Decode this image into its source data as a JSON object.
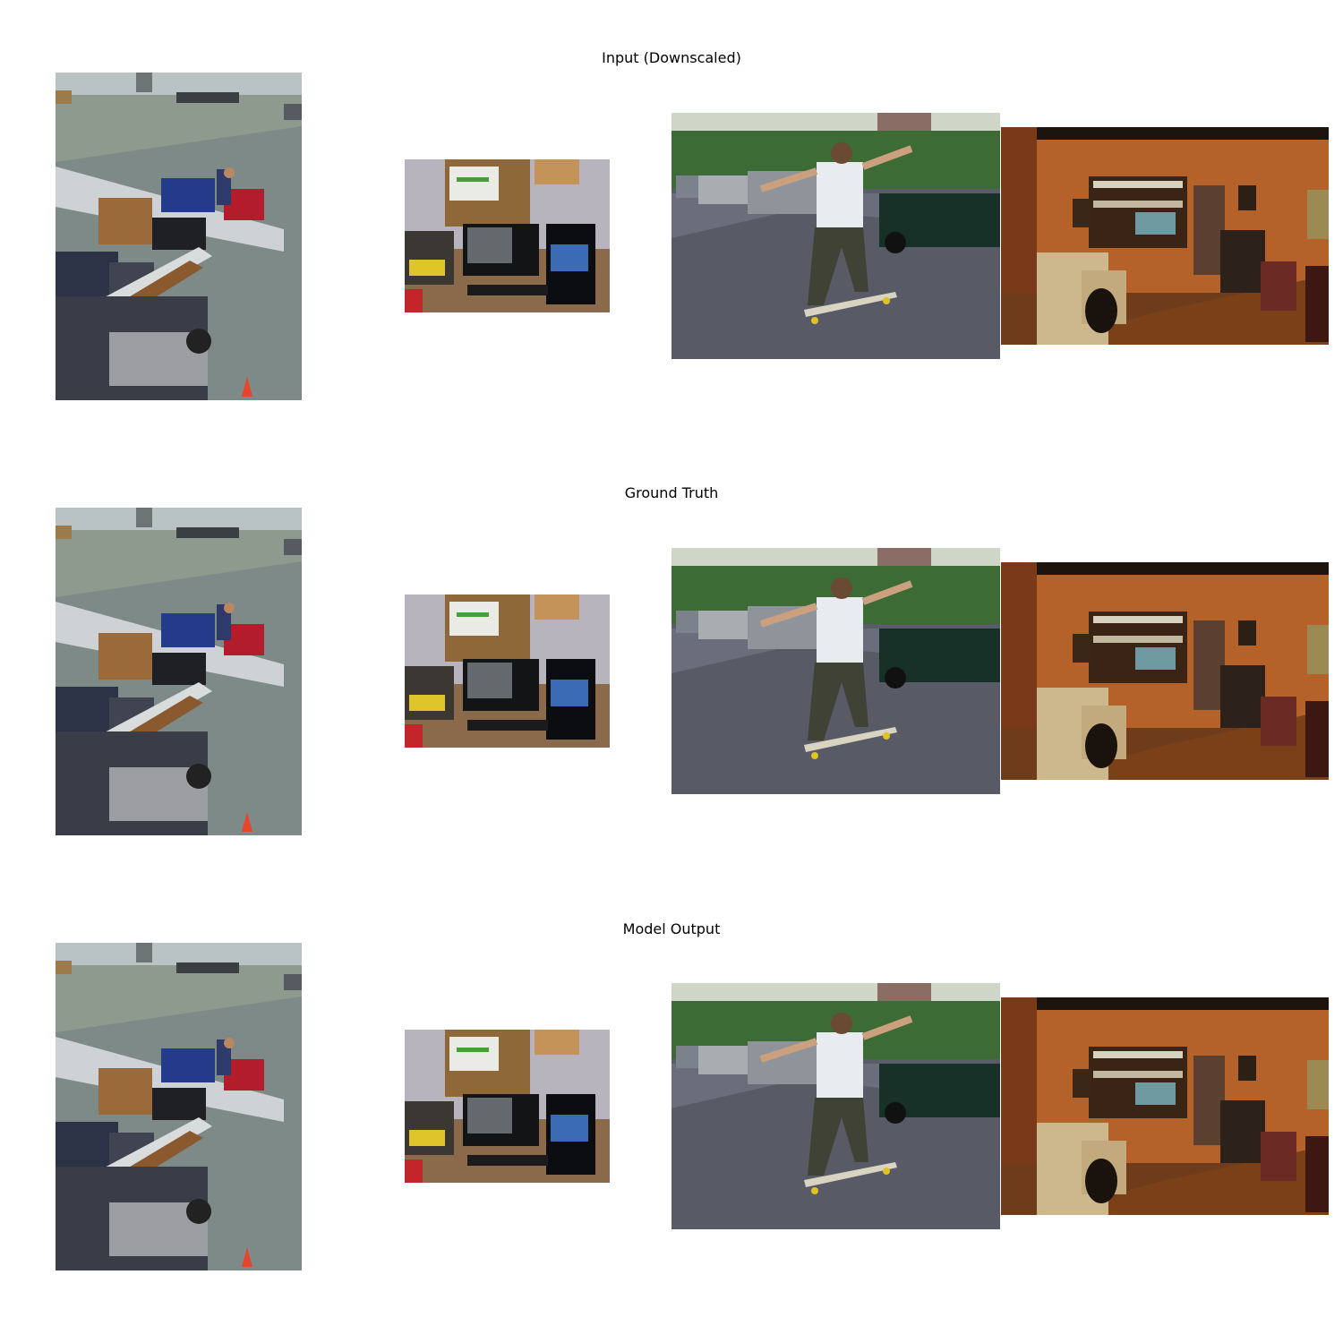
{
  "rows": [
    {
      "title": "Input (Downscaled)"
    },
    {
      "title": "Ground Truth"
    },
    {
      "title": "Model Output"
    }
  ],
  "colors": {
    "tarmac": "#8e9a8e",
    "wall_orange": "#b5612a",
    "street": "#5a5d68",
    "hedge": "#3d6b35"
  }
}
